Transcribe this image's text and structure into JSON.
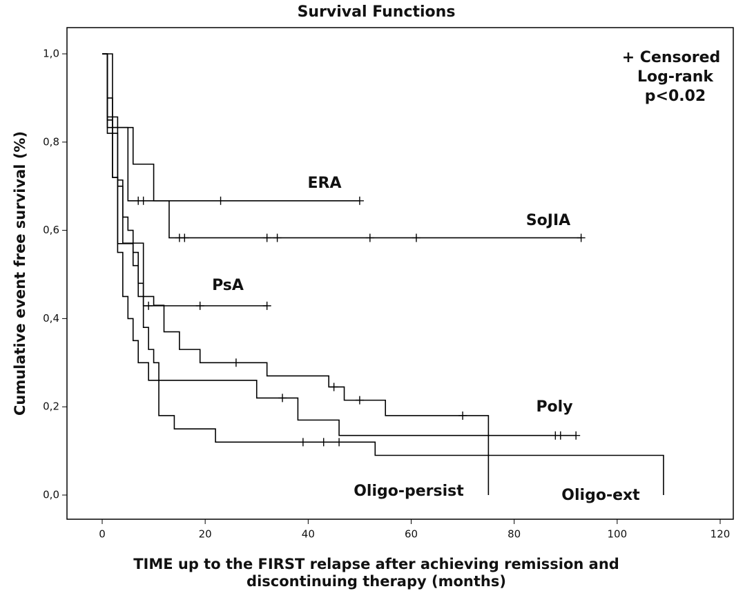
{
  "chart_data": {
    "type": "step",
    "title": "Survival Functions",
    "x_label": [
      "TIME up to the FIRST relapse after achieving remission and",
      "discontinuing therapy (months)"
    ],
    "y_label": "Cumulative event free survival (%)",
    "annotations": [
      "+ Censored",
      "Log-rank",
      "p<0.02"
    ],
    "xlim": [
      0,
      120
    ],
    "xticks": [
      0,
      20,
      40,
      60,
      80,
      100,
      120
    ],
    "ylim": [
      0,
      1
    ],
    "yticks": [
      {
        "value": 0,
        "label": "0,0"
      },
      {
        "value": 0.2,
        "label": "0,2"
      },
      {
        "value": 0.4,
        "label": "0,4"
      },
      {
        "value": 0.6,
        "label": "0,6"
      },
      {
        "value": 0.8,
        "label": "0,8"
      },
      {
        "value": 1,
        "label": "1,0"
      }
    ],
    "series": [
      {
        "name": "ERA",
        "color": "#000000",
        "x": [
          0,
          2,
          5
        ],
        "values": [
          1,
          0.833,
          0.667
        ],
        "end_x": 50,
        "censored_x": [
          7,
          8,
          23,
          50
        ],
        "censored_values": [
          0.667,
          0.667,
          0.667,
          0.667
        ]
      },
      {
        "name": "SoJIA",
        "color": "#000000",
        "x": [
          0,
          1,
          6,
          10,
          13
        ],
        "values": [
          1,
          0.833,
          0.75,
          0.667,
          0.583
        ],
        "end_x": 93,
        "censored_x": [
          15,
          16,
          32,
          34,
          52,
          61,
          93
        ],
        "censored_values": [
          0.583,
          0.583,
          0.583,
          0.583,
          0.583,
          0.583,
          0.583
        ]
      },
      {
        "name": "PsA",
        "color": "#000000",
        "x": [
          0,
          1,
          3,
          4,
          8
        ],
        "values": [
          1,
          0.857,
          0.714,
          0.571,
          0.429
        ],
        "end_x": 32,
        "censored_x": [
          9,
          19,
          32
        ],
        "censored_values": [
          0.429,
          0.429,
          0.429
        ]
      },
      {
        "name": "Poly",
        "color": "#000000",
        "x": [
          0,
          1,
          2,
          3,
          4,
          5,
          6,
          7,
          8,
          10,
          12,
          15,
          19,
          32,
          44,
          47,
          55,
          75
        ],
        "values": [
          1,
          0.9,
          0.82,
          0.7,
          0.63,
          0.6,
          0.55,
          0.48,
          0.45,
          0.43,
          0.37,
          0.33,
          0.3,
          0.27,
          0.245,
          0.215,
          0.18,
          0.135
        ],
        "end_x": 92,
        "censored_x": [
          26,
          45,
          50,
          70,
          88,
          89,
          92
        ],
        "censored_values": [
          0.3,
          0.245,
          0.215,
          0.18,
          0.135,
          0.135,
          0.135
        ]
      },
      {
        "name": "Oligo-persist",
        "color": "#000000",
        "x": [
          0,
          1,
          2,
          3,
          6,
          7,
          8,
          9,
          10,
          11,
          30,
          38,
          46,
          75
        ],
        "values": [
          1,
          0.85,
          0.72,
          0.57,
          0.52,
          0.45,
          0.38,
          0.33,
          0.3,
          0.26,
          0.22,
          0.17,
          0.135,
          0
        ],
        "end_x": 75,
        "censored_x": [
          35
        ],
        "censored_values": [
          0.22
        ]
      },
      {
        "name": "Oligo-ext",
        "color": "#000000",
        "x": [
          0,
          1,
          2,
          3,
          4,
          5,
          6,
          7,
          9,
          11,
          14,
          22,
          53,
          109
        ],
        "values": [
          1,
          0.82,
          0.72,
          0.55,
          0.45,
          0.4,
          0.35,
          0.3,
          0.26,
          0.18,
          0.15,
          0.12,
          0.09,
          0
        ],
        "end_x": 109,
        "censored_x": [
          39,
          43,
          46
        ],
        "censored_values": [
          0.12,
          0.12,
          0.12
        ]
      }
    ]
  }
}
